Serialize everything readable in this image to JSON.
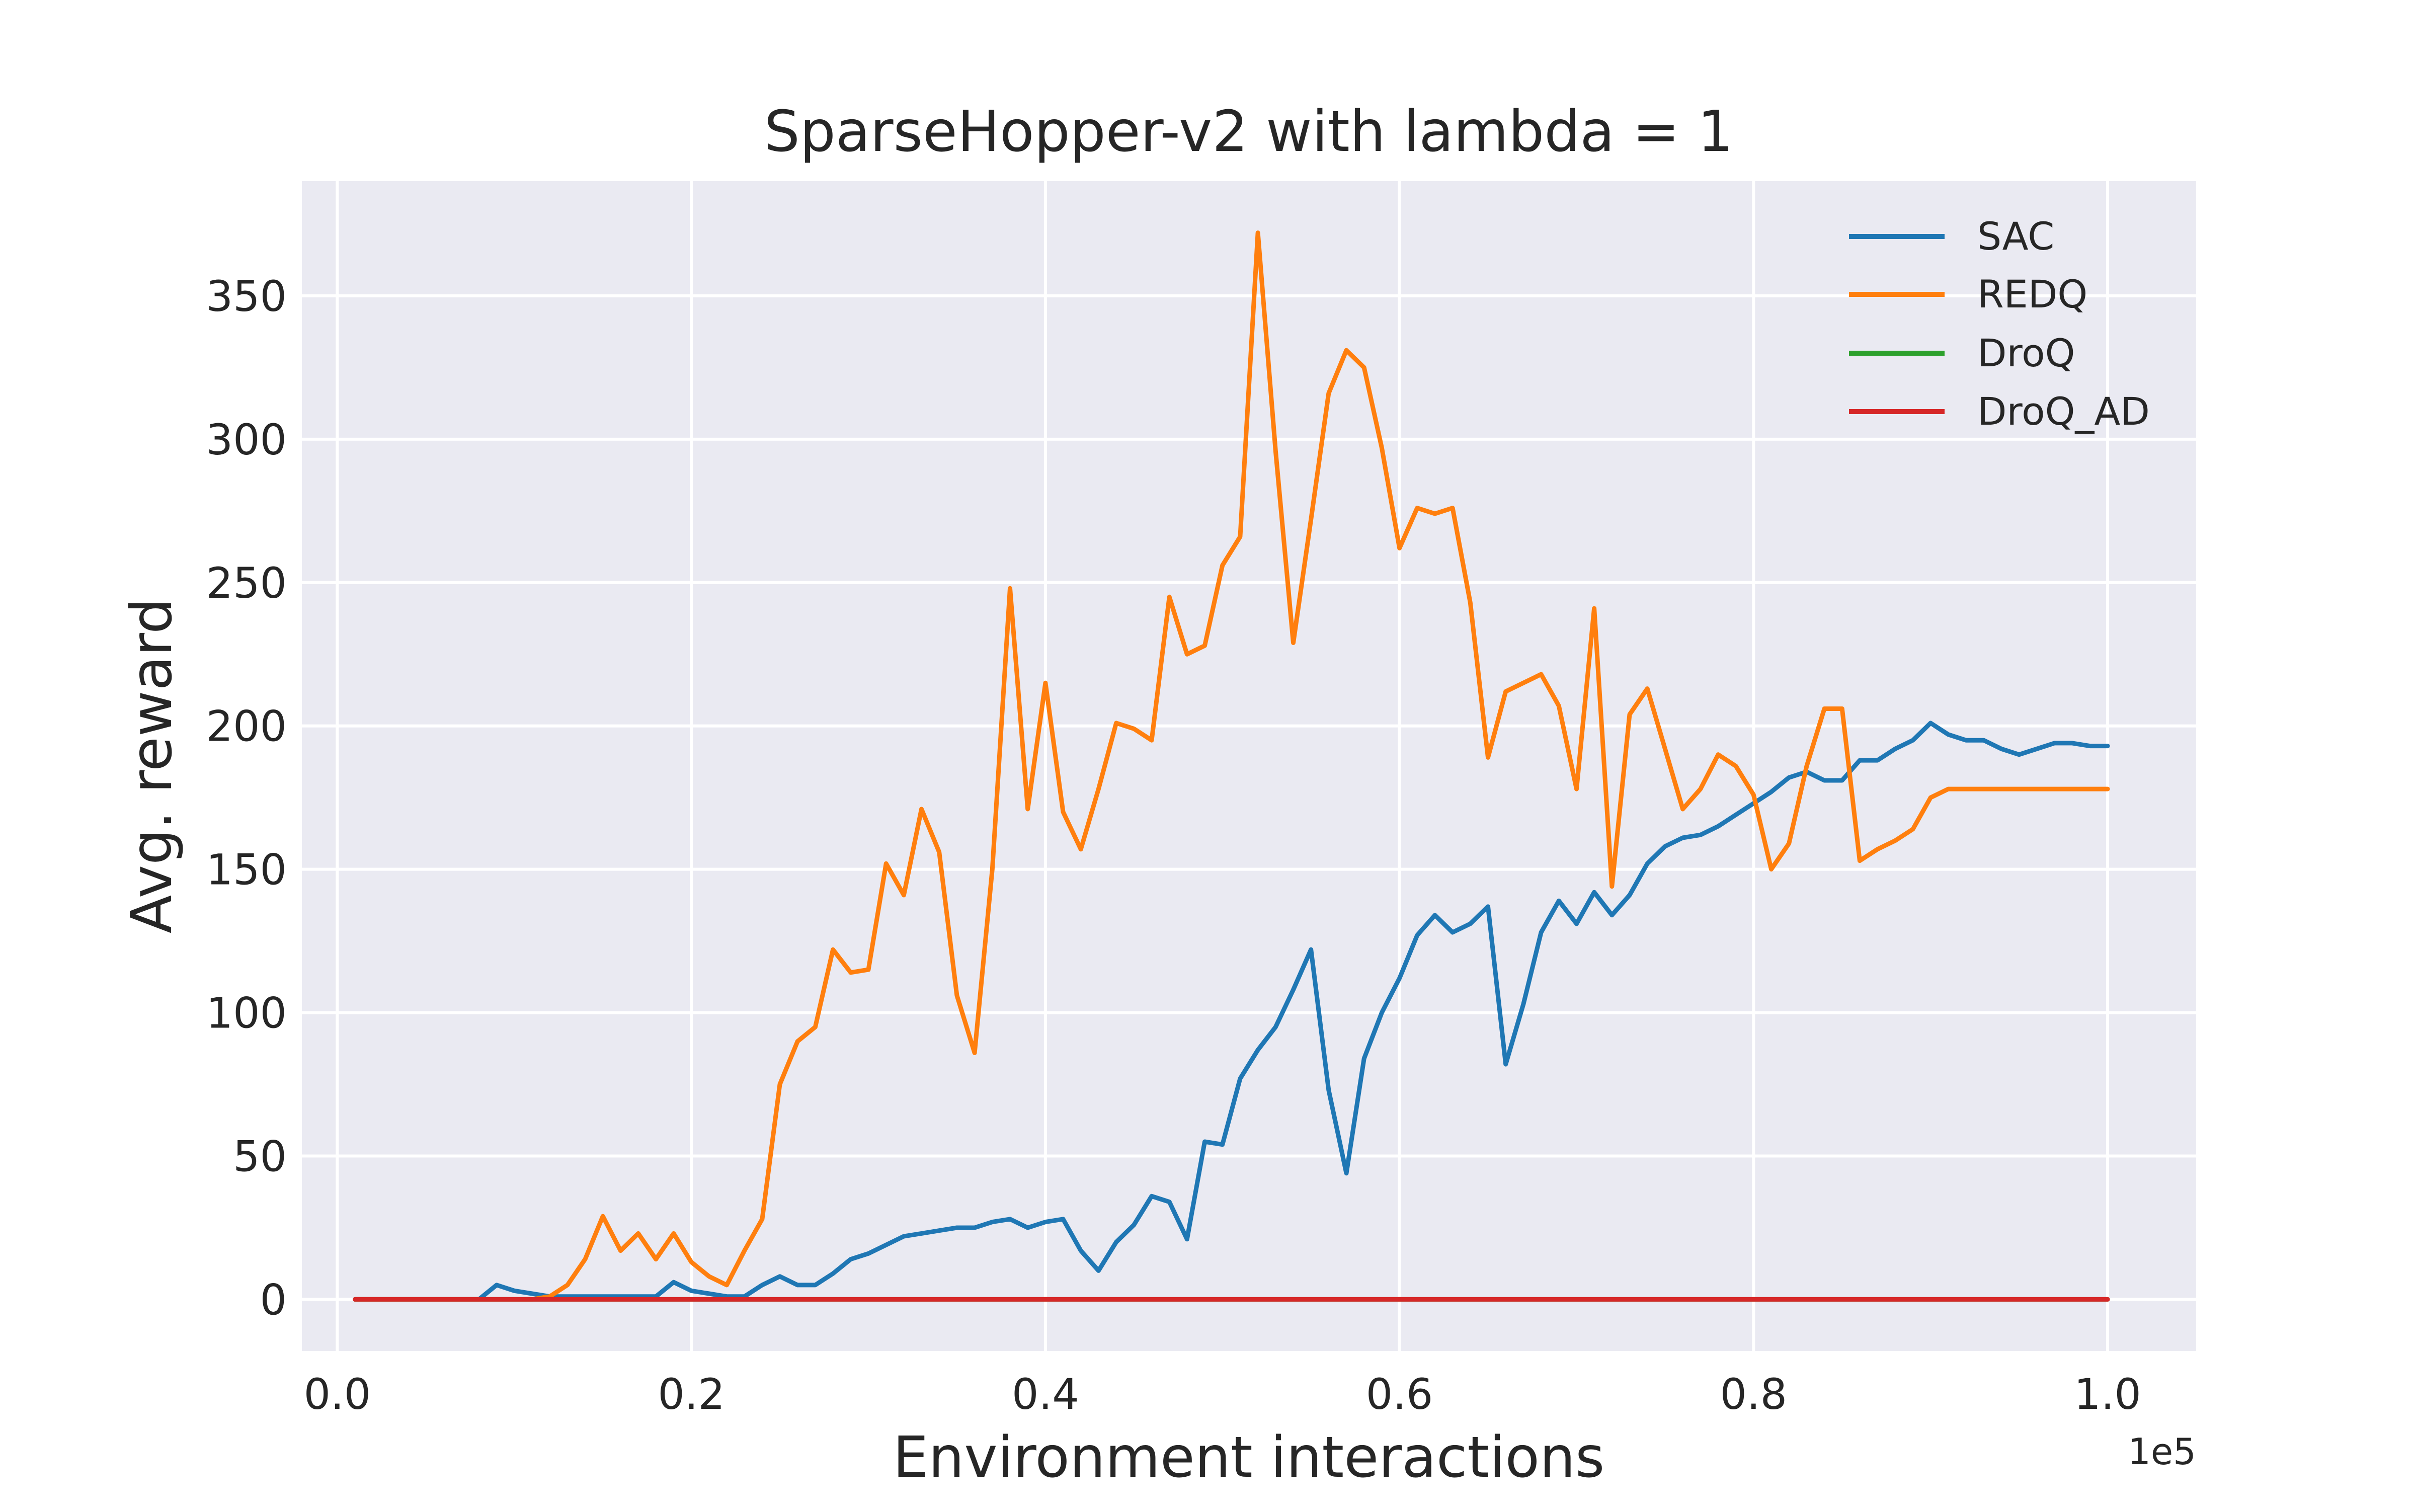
{
  "chart_data": {
    "type": "line",
    "title": "SparseHopper-v2 with lambda = 1",
    "xlabel": "Environment interactions",
    "ylabel": "Avg. reward",
    "x_offset_label": "1e5",
    "xlim": [
      -0.02,
      1.05
    ],
    "ylim": [
      -18,
      390
    ],
    "xticks": [
      0.0,
      0.2,
      0.4,
      0.6,
      0.8,
      1.0
    ],
    "xtick_labels": [
      "0.0",
      "0.2",
      "0.4",
      "0.6",
      "0.8",
      "1.0"
    ],
    "yticks": [
      0,
      50,
      100,
      150,
      200,
      250,
      300,
      350
    ],
    "ytick_labels": [
      "0",
      "50",
      "100",
      "150",
      "200",
      "250",
      "300",
      "350"
    ],
    "grid": true,
    "legend_position": "top-right",
    "background_color": "#eaeaf2",
    "x": [
      0.01,
      0.02,
      0.03,
      0.04,
      0.05,
      0.06,
      0.07,
      0.08,
      0.09,
      0.1,
      0.11,
      0.12,
      0.13,
      0.14,
      0.15,
      0.16,
      0.17,
      0.18,
      0.19,
      0.2,
      0.21,
      0.22,
      0.23,
      0.24,
      0.25,
      0.26,
      0.27,
      0.28,
      0.29,
      0.3,
      0.31,
      0.32,
      0.33,
      0.34,
      0.35,
      0.36,
      0.37,
      0.38,
      0.39,
      0.4,
      0.41,
      0.42,
      0.43,
      0.44,
      0.45,
      0.46,
      0.47,
      0.48,
      0.49,
      0.5,
      0.51,
      0.52,
      0.53,
      0.54,
      0.55,
      0.56,
      0.57,
      0.58,
      0.59,
      0.6,
      0.61,
      0.62,
      0.63,
      0.64,
      0.65,
      0.66,
      0.67,
      0.68,
      0.69,
      0.7,
      0.71,
      0.72,
      0.73,
      0.74,
      0.75,
      0.76,
      0.77,
      0.78,
      0.79,
      0.8,
      0.81,
      0.82,
      0.83,
      0.84,
      0.85,
      0.86,
      0.87,
      0.88,
      0.89,
      0.9,
      0.91,
      0.92,
      0.93,
      0.94,
      0.95,
      0.96,
      0.97,
      0.98,
      0.99,
      1.0
    ],
    "series": [
      {
        "name": "SAC",
        "color": "#1f77b4",
        "values": [
          0,
          0,
          0,
          0,
          0,
          0,
          0,
          0,
          5,
          3,
          2,
          1,
          1,
          1,
          1,
          1,
          1,
          1,
          6,
          3,
          2,
          1,
          1,
          5,
          8,
          5,
          5,
          9,
          14,
          16,
          19,
          22,
          23,
          24,
          25,
          25,
          27,
          28,
          25,
          27,
          28,
          17,
          10,
          20,
          26,
          36,
          34,
          21,
          55,
          54,
          77,
          87,
          95,
          108,
          122,
          73,
          44,
          84,
          100,
          112,
          127,
          134,
          128,
          131,
          137,
          82,
          103,
          128,
          139,
          131,
          142,
          134,
          141,
          152,
          158,
          161,
          162,
          165,
          169,
          173,
          177,
          182,
          184,
          181,
          181,
          188,
          188,
          192,
          195,
          201,
          197,
          195,
          195,
          192,
          190,
          192,
          194,
          194,
          193,
          193
        ]
      },
      {
        "name": "REDQ",
        "color": "#ff7f0e",
        "values": [
          0,
          0,
          0,
          0,
          0,
          0,
          0,
          0,
          0,
          0,
          0,
          1,
          5,
          14,
          29,
          17,
          23,
          14,
          23,
          13,
          8,
          5,
          17,
          28,
          75,
          90,
          95,
          122,
          114,
          115,
          152,
          141,
          171,
          156,
          106,
          86,
          150,
          248,
          171,
          215,
          170,
          157,
          178,
          201,
          199,
          195,
          245,
          225,
          228,
          256,
          266,
          372,
          296,
          229,
          272,
          316,
          331,
          325,
          297,
          262,
          276,
          274,
          276,
          243,
          189,
          212,
          215,
          218,
          207,
          178,
          241,
          144,
          204,
          213,
          192,
          171,
          178,
          190,
          186,
          176,
          150,
          159,
          186,
          206,
          206,
          153,
          157,
          160,
          164,
          175,
          178,
          178,
          178,
          178,
          178,
          178,
          178,
          178,
          178,
          178
        ]
      },
      {
        "name": "DroQ",
        "color": "#2ca02c",
        "values": [
          0,
          0,
          0,
          0,
          0,
          0,
          0,
          0,
          0,
          0,
          0,
          0,
          0,
          0,
          0,
          0,
          0,
          0,
          0,
          0,
          0,
          0,
          0,
          0,
          0,
          0,
          0,
          0,
          0,
          0,
          0,
          0,
          0,
          0,
          0,
          0,
          0,
          0,
          0,
          0,
          0,
          0,
          0,
          0,
          0,
          0,
          0,
          0,
          0,
          0,
          0,
          0,
          0,
          0,
          0,
          0,
          0,
          0,
          0,
          0,
          0,
          0,
          0,
          0,
          0,
          0,
          0,
          0,
          0,
          0,
          0,
          0,
          0,
          0,
          0,
          0,
          0,
          0,
          0,
          0,
          0,
          0,
          0,
          0,
          0,
          0,
          0,
          0,
          0,
          0,
          0,
          0,
          0,
          0,
          0,
          0,
          0,
          0,
          0,
          0
        ]
      },
      {
        "name": "DroQ_AD",
        "color": "#d62728",
        "values": [
          0,
          0,
          0,
          0,
          0,
          0,
          0,
          0,
          0,
          0,
          0,
          0,
          0,
          0,
          0,
          0,
          0,
          0,
          0,
          0,
          0,
          0,
          0,
          0,
          0,
          0,
          0,
          0,
          0,
          0,
          0,
          0,
          0,
          0,
          0,
          0,
          0,
          0,
          0,
          0,
          0,
          0,
          0,
          0,
          0,
          0,
          0,
          0,
          0,
          0,
          0,
          0,
          0,
          0,
          0,
          0,
          0,
          0,
          0,
          0,
          0,
          0,
          0,
          0,
          0,
          0,
          0,
          0,
          0,
          0,
          0,
          0,
          0,
          0,
          0,
          0,
          0,
          0,
          0,
          0,
          0,
          0,
          0,
          0,
          0,
          0,
          0,
          0,
          0,
          0,
          0,
          0,
          0,
          0,
          0,
          0,
          0,
          0,
          0,
          0
        ]
      }
    ]
  }
}
